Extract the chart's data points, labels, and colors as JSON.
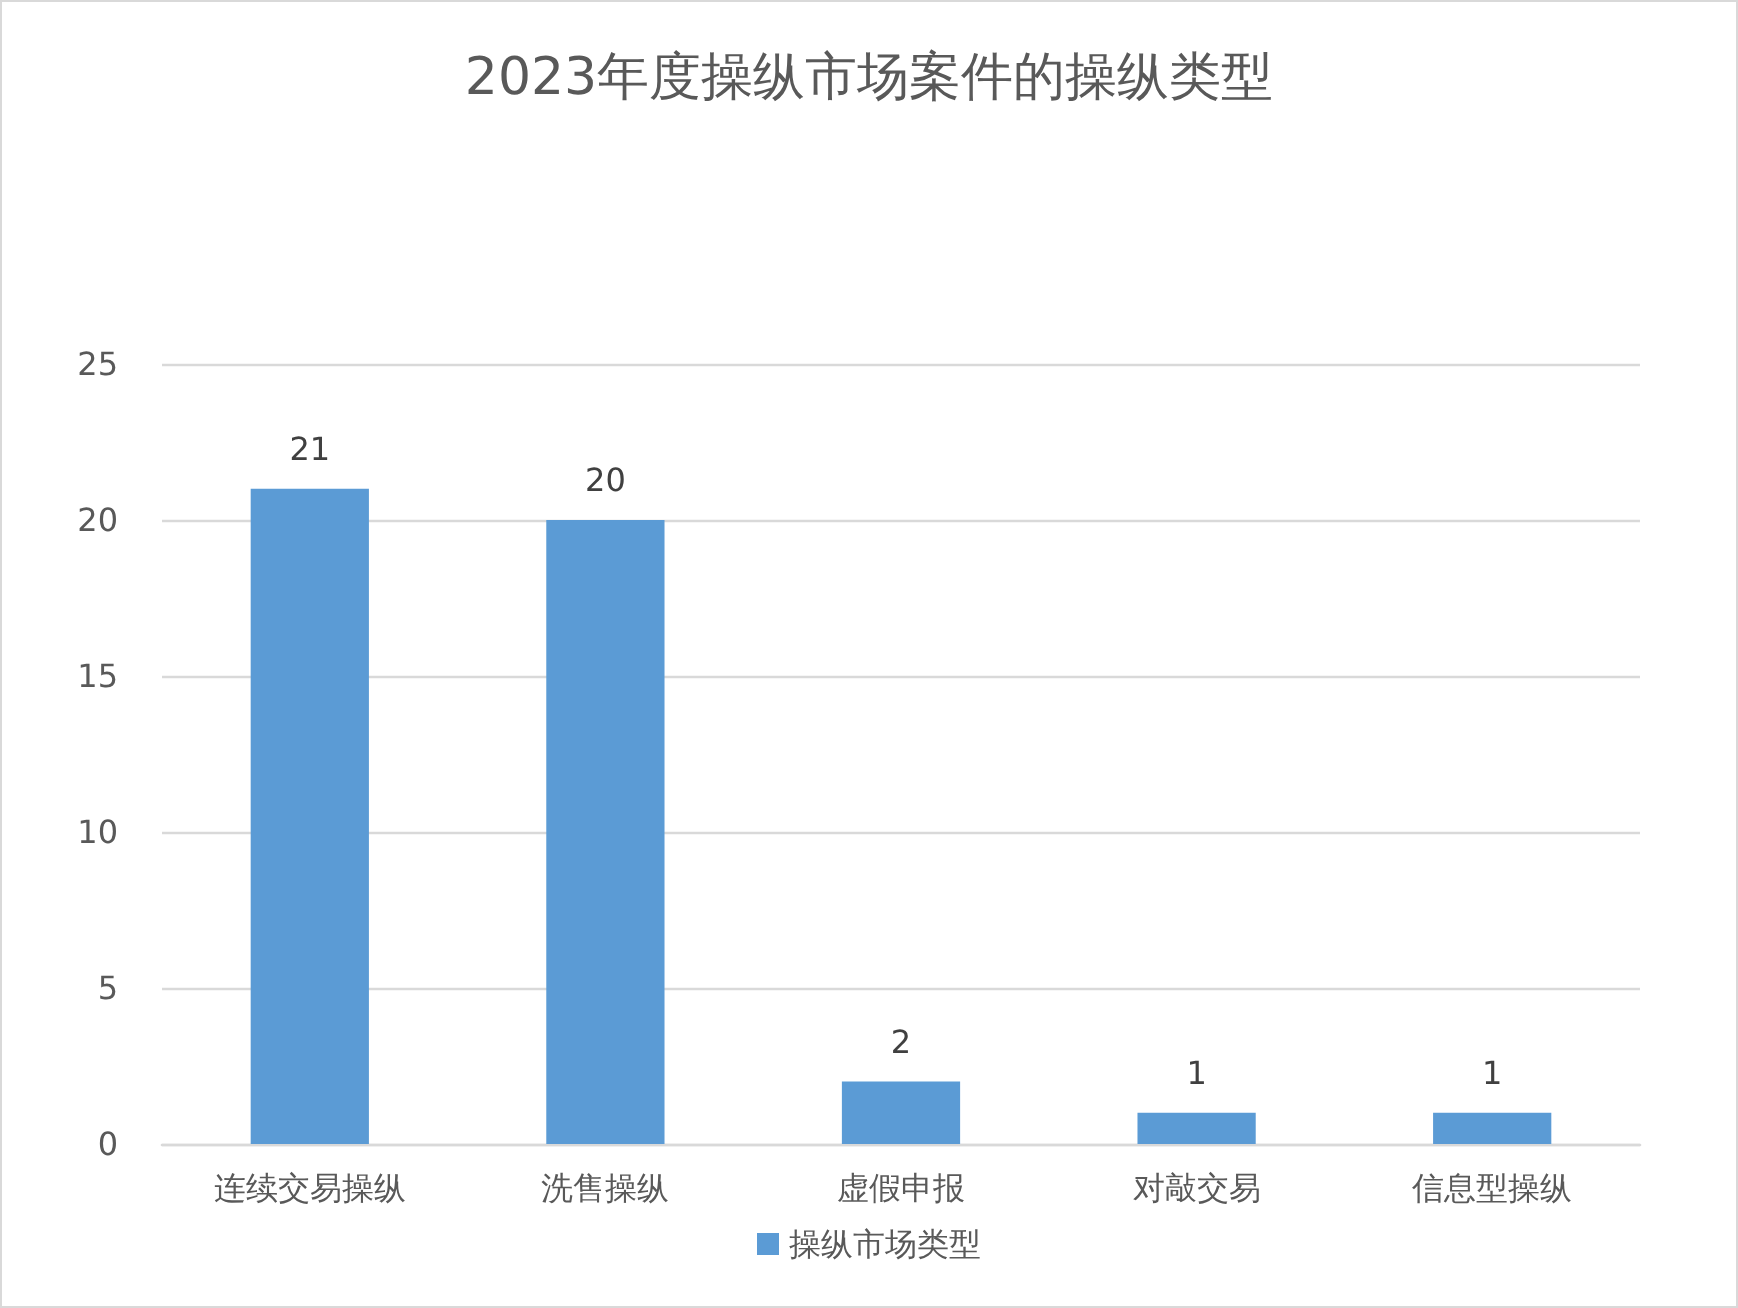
{
  "chart_data": {
    "type": "bar",
    "title": "2023年度操纵市场案件的操纵类型",
    "categories": [
      "连续交易操纵",
      "洗售操纵",
      "虚假申报",
      "对敲交易",
      "信息型操纵"
    ],
    "series": [
      {
        "name": "操纵市场类型",
        "color": "#5b9bd5",
        "values": [
          21,
          20,
          2,
          1,
          1
        ]
      }
    ],
    "ylim": [
      0,
      25
    ],
    "yticks": [
      0,
      5,
      10,
      15,
      20,
      25
    ],
    "grid": "y",
    "legend": "bottom",
    "data_labels": true
  }
}
